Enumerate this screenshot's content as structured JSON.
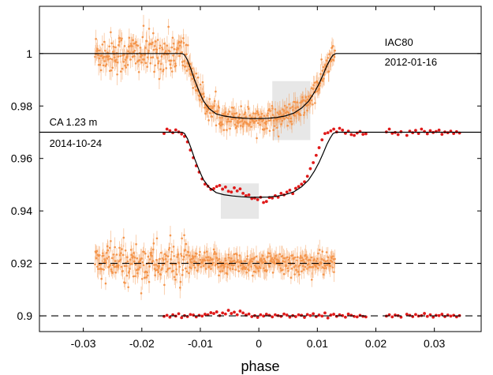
{
  "chart_data": {
    "type": "scatter",
    "xlabel": "phase",
    "ylabel": "",
    "xlim": [
      -0.0375,
      0.038
    ],
    "ylim": [
      0.894,
      1.018
    ],
    "x_ticks": [
      -0.03,
      -0.02,
      -0.01,
      0,
      0.01,
      0.02,
      0.03
    ],
    "x_tick_labels": [
      "-0.03",
      "-0.02",
      "-0.01",
      "0",
      "0.01",
      "0.02",
      "0.03"
    ],
    "y_ticks": [
      0.9,
      0.92,
      0.94,
      0.96,
      0.98,
      1.0
    ],
    "y_tick_labels": [
      "0.9",
      "0.92",
      "0.94",
      "0.96",
      "0.98",
      "1"
    ],
    "grid": false,
    "annotations": [
      {
        "text": "IAC80",
        "x": 0.0215,
        "y": 1.003
      },
      {
        "text": "2012-01-16",
        "x": 0.0215,
        "y": 0.9955
      },
      {
        "text": "CA 1.23 m",
        "x": -0.0358,
        "y": 0.9725
      },
      {
        "text": "2014-10-24",
        "x": -0.0358,
        "y": 0.9645
      }
    ],
    "shaded_regions": [
      {
        "x": [
          0.0023,
          0.0088
        ],
        "y": [
          0.967,
          0.9895
        ]
      },
      {
        "x": [
          -0.0065,
          0.0
        ],
        "y": [
          0.937,
          0.9505
        ]
      }
    ],
    "series": [
      {
        "role": "IAC80 model",
        "color": "#000000",
        "x": [
          -0.0375,
          -0.0131,
          -0.0127,
          -0.0122,
          -0.0116,
          -0.011,
          -0.0102,
          -0.0095,
          -0.0085,
          -0.0073,
          -0.006,
          -0.0045,
          -0.003,
          -0.0015,
          0.0,
          0.0015,
          0.003,
          0.0045,
          0.006,
          0.0073,
          0.0085,
          0.0095,
          0.0103,
          0.011,
          0.0116,
          0.0122,
          0.0127,
          0.0132,
          0.038
        ],
        "y": [
          1.0,
          1.0,
          0.9995,
          0.9975,
          0.994,
          0.99,
          0.9855,
          0.982,
          0.979,
          0.977,
          0.9762,
          0.9757,
          0.9754,
          0.9752,
          0.9752,
          0.9753,
          0.9756,
          0.9762,
          0.9773,
          0.9792,
          0.9818,
          0.9852,
          0.9885,
          0.992,
          0.9952,
          0.9978,
          0.9995,
          1.0,
          1.0
        ]
      },
      {
        "role": "CA 1.23 m model",
        "color": "#000000",
        "x": [
          -0.0375,
          -0.0131,
          -0.0127,
          -0.0122,
          -0.0116,
          -0.011,
          -0.0102,
          -0.0095,
          -0.0085,
          -0.0073,
          -0.006,
          -0.0045,
          -0.003,
          -0.0015,
          0.0,
          0.0015,
          0.003,
          0.0045,
          0.006,
          0.0073,
          0.0085,
          0.0095,
          0.0103,
          0.011,
          0.0116,
          0.0122,
          0.0127,
          0.0132,
          0.038
        ],
        "y": [
          0.97,
          0.97,
          0.9695,
          0.9675,
          0.964,
          0.96,
          0.9555,
          0.952,
          0.949,
          0.947,
          0.9462,
          0.9457,
          0.9454,
          0.9452,
          0.9452,
          0.9453,
          0.9456,
          0.9462,
          0.9473,
          0.9492,
          0.9518,
          0.9552,
          0.9585,
          0.962,
          0.9652,
          0.9678,
          0.9695,
          0.97,
          0.97
        ]
      },
      {
        "role": "residual reference 0.92",
        "color": "#000000",
        "dashed": true,
        "x": [
          -0.0375,
          0.038
        ],
        "y": [
          0.92,
          0.92
        ]
      },
      {
        "role": "residual reference 0.9",
        "color": "#000000",
        "dashed": true,
        "x": [
          -0.0375,
          0.038
        ],
        "y": [
          0.9,
          0.9
        ]
      },
      {
        "role": "IAC80 photometry",
        "color": "#f4954c",
        "marker": "point with error bar",
        "x_range": [
          -0.028,
          0.013
        ],
        "approx_points": 520,
        "y_offset_model": 0.0,
        "scatter_sd_left": 0.004,
        "scatter_sd_right": 0.0022,
        "error_bar": 0.003
      },
      {
        "role": "IAC80 residuals",
        "color": "#f4954c",
        "marker": "point with error bar",
        "x_range": [
          -0.028,
          0.013
        ],
        "approx_points": 520,
        "y_center": 0.92,
        "scatter_sd_left": 0.004,
        "scatter_sd_right": 0.0022,
        "error_bar": 0.003
      },
      {
        "role": "CA 1.23 m photometry",
        "color": "#e01a1a",
        "marker": "dot",
        "x": [
          -0.0162,
          -0.0157,
          -0.0152,
          -0.0147,
          -0.0142,
          -0.0137,
          -0.0132,
          -0.0127,
          -0.0122,
          -0.0117,
          -0.0112,
          -0.0107,
          -0.0102,
          -0.0097,
          -0.0092,
          -0.0087,
          -0.0082,
          -0.0077,
          -0.0072,
          -0.0067,
          -0.0062,
          -0.0057,
          -0.0052,
          -0.0047,
          -0.0042,
          -0.0037,
          -0.0032,
          -0.0027,
          -0.0022,
          -0.0017,
          -0.0012,
          -0.0007,
          -0.0002,
          0.0003,
          0.0008,
          0.0013,
          0.0018,
          0.0023,
          0.0028,
          0.0033,
          0.0038,
          0.0043,
          0.0048,
          0.0053,
          0.0058,
          0.0063,
          0.0068,
          0.0073,
          0.0078,
          0.0083,
          0.0088,
          0.0093,
          0.0098,
          0.0103,
          0.0108,
          0.0113,
          0.0118,
          0.0123,
          0.0128,
          0.0133,
          0.0138,
          0.0143,
          0.0148,
          0.0153,
          0.0158,
          0.0163,
          0.0168,
          0.0173,
          0.0178,
          0.0183,
          0.0218,
          0.0223,
          0.0228,
          0.0233,
          0.0238,
          0.0243,
          0.0253,
          0.0258,
          0.0263,
          0.0268,
          0.0273,
          0.0278,
          0.0283,
          0.0288,
          0.0293,
          0.0298,
          0.0303,
          0.0308,
          0.0313,
          0.0318,
          0.0323,
          0.0328,
          0.0333,
          0.0338,
          0.0343
        ],
        "y": [
          0.9695,
          0.9712,
          0.9706,
          0.9698,
          0.9709,
          0.9701,
          0.9693,
          0.9684,
          0.9663,
          0.9632,
          0.9603,
          0.9572,
          0.9548,
          0.9522,
          0.9502,
          0.9494,
          0.9482,
          0.9485,
          0.9493,
          0.9497,
          0.9483,
          0.9491,
          0.9475,
          0.9472,
          0.9488,
          0.9476,
          0.9484,
          0.9467,
          0.9458,
          0.9461,
          0.9447,
          0.9449,
          0.9443,
          0.9452,
          0.9432,
          0.9436,
          0.9451,
          0.9449,
          0.9458,
          0.9452,
          0.9467,
          0.9461,
          0.9472,
          0.9479,
          0.9466,
          0.9486,
          0.9493,
          0.9502,
          0.9511,
          0.9532,
          0.9561,
          0.9584,
          0.9612,
          0.9641,
          0.9671,
          0.9695,
          0.9698,
          0.9705,
          0.9712,
          0.9701,
          0.9715,
          0.9708,
          0.9696,
          0.9704,
          0.9691,
          0.9688,
          0.9697,
          0.9703,
          0.9692,
          0.9694,
          0.9701,
          0.9712,
          0.9696,
          0.9699,
          0.9691,
          0.9702,
          0.9688,
          0.9704,
          0.9698,
          0.9707,
          0.9695,
          0.9712,
          0.9703,
          0.9694,
          0.9706,
          0.9699,
          0.9703,
          0.9708,
          0.9692,
          0.9701,
          0.9698,
          0.9704,
          0.9695,
          0.9702,
          0.9697
        ]
      },
      {
        "role": "CA 1.23 m residuals",
        "color": "#e01a1a",
        "marker": "dot",
        "x": [
          -0.0162,
          -0.0157,
          -0.0152,
          -0.0147,
          -0.0142,
          -0.0137,
          -0.0132,
          -0.0127,
          -0.0122,
          -0.0117,
          -0.0112,
          -0.0107,
          -0.0102,
          -0.0097,
          -0.0092,
          -0.0087,
          -0.0082,
          -0.0077,
          -0.0072,
          -0.0067,
          -0.0062,
          -0.0057,
          -0.0052,
          -0.0047,
          -0.0042,
          -0.0037,
          -0.0032,
          -0.0027,
          -0.0022,
          -0.0017,
          -0.0012,
          -0.0007,
          -0.0002,
          0.0003,
          0.0008,
          0.0013,
          0.0018,
          0.0023,
          0.0028,
          0.0033,
          0.0038,
          0.0043,
          0.0048,
          0.0053,
          0.0058,
          0.0063,
          0.0068,
          0.0073,
          0.0078,
          0.0083,
          0.0088,
          0.0093,
          0.0098,
          0.0103,
          0.0108,
          0.0113,
          0.0118,
          0.0123,
          0.0128,
          0.0133,
          0.0138,
          0.0143,
          0.0148,
          0.0153,
          0.0158,
          0.0163,
          0.0168,
          0.0173,
          0.0178,
          0.0183,
          0.0218,
          0.0223,
          0.0228,
          0.0233,
          0.0238,
          0.0243,
          0.0253,
          0.0258,
          0.0263,
          0.0268,
          0.0273,
          0.0278,
          0.0283,
          0.0288,
          0.0293,
          0.0298,
          0.0303,
          0.0308,
          0.0313,
          0.0318,
          0.0323,
          0.0328,
          0.0333,
          0.0338,
          0.0343
        ],
        "y": [
          0.8998,
          0.9002,
          0.8995,
          0.9004,
          0.8999,
          0.9008,
          0.8993,
          0.9001,
          0.8997,
          0.9005,
          0.9003,
          0.8996,
          0.9002,
          0.8999,
          0.9006,
          0.9004,
          0.9012,
          0.9009,
          0.9015,
          0.9001,
          0.9011,
          0.9007,
          0.9021,
          0.9009,
          0.9014,
          0.9004,
          0.9018,
          0.9011,
          0.9003,
          0.9007,
          0.8997,
          0.9001,
          0.8994,
          0.9004,
          0.8999,
          0.9006,
          0.9002,
          0.8996,
          0.9004,
          0.9001,
          0.8998,
          0.9007,
          0.9003,
          0.8995,
          0.9001,
          0.8997,
          0.9004,
          0.9002,
          0.8994,
          0.9005,
          0.9001,
          0.9008,
          0.8997,
          0.9003,
          0.8999,
          0.9011,
          0.8992,
          0.9003,
          0.9006,
          0.8998,
          0.9004,
          0.9001,
          0.8995,
          0.9007,
          0.9002,
          0.8998,
          0.8996,
          0.9002,
          0.8998,
          0.8996,
          0.8999,
          0.9004,
          0.8996,
          0.9003,
          0.9001,
          0.8995,
          0.9006,
          0.9002,
          0.8997,
          0.9005,
          0.8999,
          0.9001,
          0.9009,
          0.8998,
          0.9004,
          0.8995,
          0.9002,
          0.9001,
          0.9006,
          0.8997,
          0.9003,
          0.8999,
          0.9002,
          0.8996,
          0.9001
        ]
      }
    ]
  }
}
